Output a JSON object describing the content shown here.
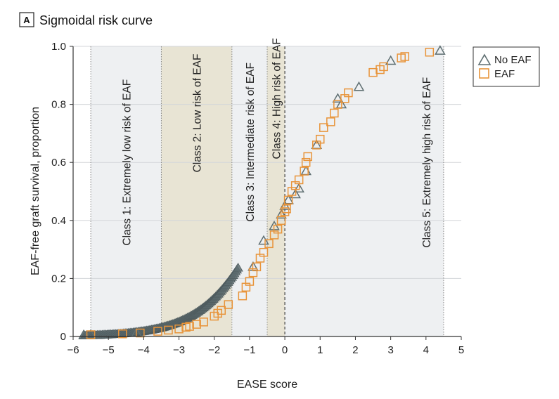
{
  "panel": {
    "letter": "A",
    "title": "Sigmoidal risk curve"
  },
  "chart_data": {
    "type": "scatter",
    "xlabel": "EASE score",
    "ylabel": "EAF-free graft survival, proportion",
    "xlim": [
      -6,
      5
    ],
    "ylim": [
      0,
      1.0
    ],
    "x_ticks": [
      -6,
      -5,
      -4,
      -3,
      -2,
      -1,
      0,
      1,
      2,
      3,
      4,
      5
    ],
    "x_tick_labels": [
      "−6",
      "−5",
      "−4",
      "−3",
      "−2",
      "−1",
      "0",
      "1",
      "2",
      "3",
      "4",
      "5"
    ],
    "y_ticks": [
      0,
      0.2,
      0.4,
      0.6,
      0.8,
      1.0
    ],
    "y_tick_labels": [
      "0",
      "0.2",
      "0.4",
      "0.6",
      "0.8",
      "1.0"
    ],
    "grid": true,
    "legend_position": "top-right",
    "colors": {
      "no_eaf": "#5f6f72",
      "eaf": "#e8943a",
      "class_light": "#eef0f2",
      "class_tan": "#e8e4d4",
      "grid": "#d3d6d9",
      "dotted_line": "#888888"
    },
    "class_regions": [
      {
        "label": "Class 1: Extremely low risk of EAF",
        "from": -5.5,
        "to": -3.5,
        "shade": "light"
      },
      {
        "label": "Class 2: Low risk of EAF",
        "from": -3.5,
        "to": -1.5,
        "shade": "tan"
      },
      {
        "label": "Class 3: Intermediate risk of EAF",
        "from": -1.5,
        "to": -0.5,
        "shade": "light"
      },
      {
        "label": "Class 4: High risk of EAF",
        "from": -0.5,
        "to": 0,
        "shade": "tan"
      },
      {
        "label": "Class 5: Extremely high risk of EAF",
        "from": 0,
        "to": 4.5,
        "shade": "light"
      }
    ],
    "boundary_lines": [
      -5.5,
      -3.5,
      -1.5,
      -0.5,
      0,
      4.5
    ],
    "zero_line": 0,
    "series": [
      {
        "name": "No EAF",
        "marker": "triangle",
        "points": [
          [
            -5.7,
            0.005
          ],
          [
            -5.5,
            0.006
          ],
          [
            -4.2,
            0.012
          ],
          [
            -0.9,
            0.24
          ],
          [
            -0.6,
            0.33
          ],
          [
            -0.3,
            0.38
          ],
          [
            -0.1,
            0.42
          ],
          [
            0.0,
            0.45
          ],
          [
            0.1,
            0.47
          ],
          [
            0.3,
            0.49
          ],
          [
            0.4,
            0.51
          ],
          [
            0.6,
            0.57
          ],
          [
            0.9,
            0.66
          ],
          [
            1.5,
            0.82
          ],
          [
            1.6,
            0.8
          ],
          [
            2.1,
            0.86
          ],
          [
            3.0,
            0.95
          ],
          [
            4.4,
            0.985
          ]
        ]
      },
      {
        "name": "EAF",
        "marker": "square",
        "points": [
          [
            -5.5,
            0.006
          ],
          [
            -4.6,
            0.009
          ],
          [
            -4.1,
            0.012
          ],
          [
            -3.6,
            0.018
          ],
          [
            -3.3,
            0.022
          ],
          [
            -3.0,
            0.026
          ],
          [
            -2.8,
            0.032
          ],
          [
            -2.7,
            0.035
          ],
          [
            -2.5,
            0.042
          ],
          [
            -2.3,
            0.05
          ],
          [
            -2.0,
            0.07
          ],
          [
            -1.9,
            0.08
          ],
          [
            -1.8,
            0.09
          ],
          [
            -1.6,
            0.11
          ],
          [
            -1.2,
            0.14
          ],
          [
            -1.1,
            0.17
          ],
          [
            -1.0,
            0.19
          ],
          [
            -0.9,
            0.22
          ],
          [
            -0.8,
            0.24
          ],
          [
            -0.7,
            0.27
          ],
          [
            -0.6,
            0.29
          ],
          [
            -0.45,
            0.32
          ],
          [
            -0.3,
            0.35
          ],
          [
            -0.2,
            0.37
          ],
          [
            -0.1,
            0.4
          ],
          [
            0.0,
            0.43
          ],
          [
            0.05,
            0.44
          ],
          [
            0.1,
            0.47
          ],
          [
            0.2,
            0.5
          ],
          [
            0.3,
            0.52
          ],
          [
            0.4,
            0.54
          ],
          [
            0.55,
            0.57
          ],
          [
            0.6,
            0.6
          ],
          [
            0.65,
            0.62
          ],
          [
            0.9,
            0.66
          ],
          [
            1.0,
            0.68
          ],
          [
            1.1,
            0.72
          ],
          [
            1.3,
            0.74
          ],
          [
            1.4,
            0.77
          ],
          [
            1.5,
            0.8
          ],
          [
            1.7,
            0.82
          ],
          [
            1.8,
            0.84
          ],
          [
            2.5,
            0.91
          ],
          [
            2.7,
            0.92
          ],
          [
            2.8,
            0.93
          ],
          [
            3.3,
            0.96
          ],
          [
            3.4,
            0.965
          ],
          [
            4.1,
            0.98
          ]
        ]
      }
    ],
    "curve_density": {
      "x_start": -5.7,
      "x_end": -1.3
    }
  }
}
